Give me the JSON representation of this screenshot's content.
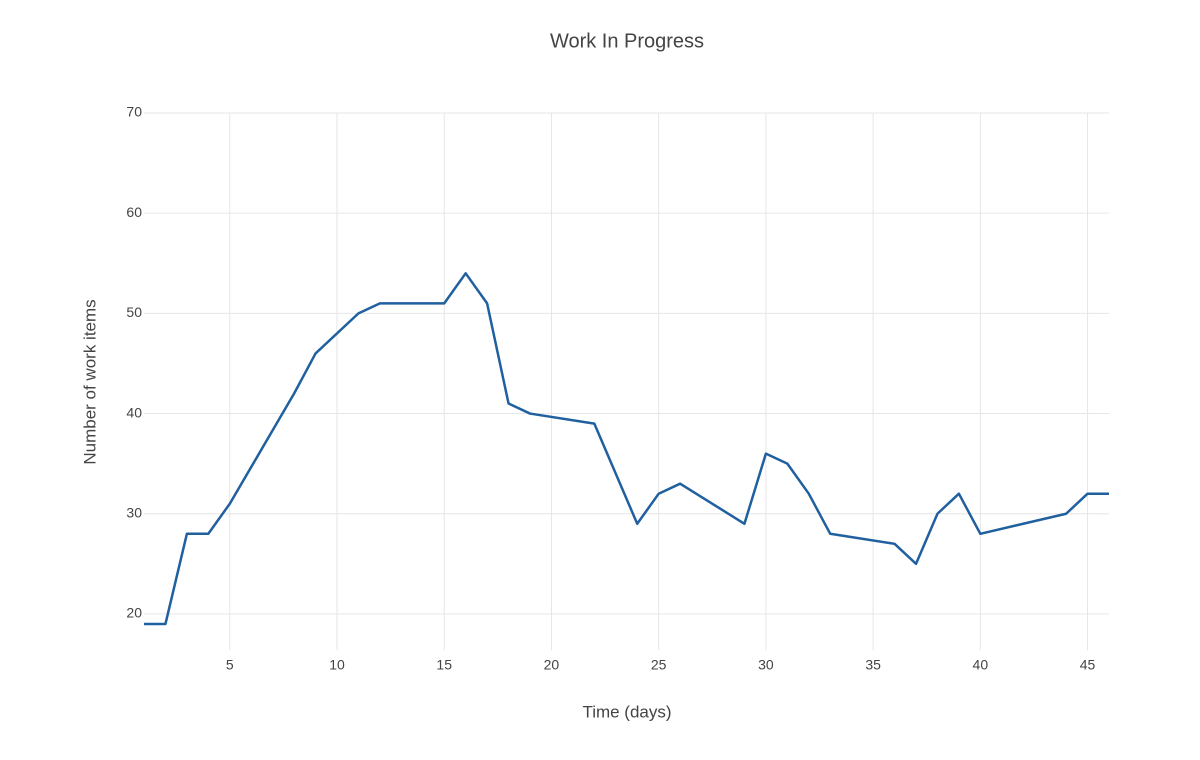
{
  "chart_data": {
    "type": "line",
    "title": "Work In Progress",
    "x_label": "Time (days)",
    "y_label": "Number of work items",
    "x": [
      1,
      2,
      3,
      4,
      5,
      8,
      9,
      11,
      12,
      15,
      16,
      17,
      18,
      19,
      22,
      24,
      25,
      26,
      29,
      30,
      31,
      32,
      33,
      36,
      37,
      38,
      39,
      40,
      44,
      45,
      46
    ],
    "series": [
      {
        "color": "#20609f",
        "values": [
          19,
          19,
          28,
          28,
          31,
          42,
          46,
          50,
          51,
          51,
          54,
          51,
          41,
          40,
          39,
          29,
          32,
          33,
          29,
          36,
          35,
          32,
          28,
          27,
          25,
          30,
          32,
          28,
          30,
          32,
          32
        ]
      }
    ],
    "xlim": [
      1,
      46
    ],
    "xticks": [
      5,
      10,
      15,
      20,
      25,
      30,
      35,
      40,
      45
    ],
    "ylim": [
      16.4,
      70
    ],
    "yticks": [
      20,
      30,
      40,
      50,
      60,
      70
    ],
    "grid": true
  }
}
